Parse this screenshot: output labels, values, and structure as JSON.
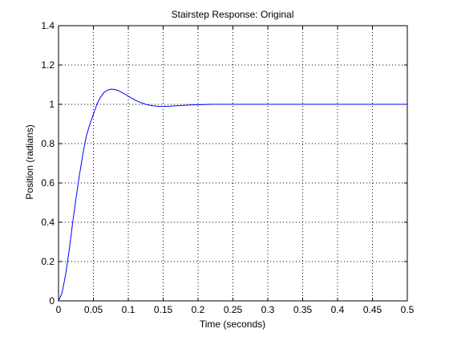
{
  "chart_data": {
    "type": "line",
    "title": "Stairstep Response: Original",
    "xlabel": "Time (seconds)",
    "ylabel": "Position (radians)",
    "xlim": [
      0,
      0.5
    ],
    "ylim": [
      0,
      1.4
    ],
    "xticks": [
      0,
      0.05,
      0.1,
      0.15,
      0.2,
      0.25,
      0.3,
      0.35,
      0.4,
      0.45,
      0.5
    ],
    "xtick_labels": [
      "0",
      "0.05",
      "0.1",
      "0.15",
      "0.2",
      "0.25",
      "0.3",
      "0.35",
      "0.4",
      "0.45",
      "0.5"
    ],
    "yticks": [
      0,
      0.2,
      0.4,
      0.6,
      0.8,
      1,
      1.2,
      1.4
    ],
    "ytick_labels": [
      "0",
      "0.2",
      "0.4",
      "0.6",
      "0.8",
      "1",
      "1.2",
      "1.4"
    ],
    "grid": "dotted",
    "line_color": "#0000ff",
    "series": [
      {
        "x": [
          0,
          0.005,
          0.01,
          0.015,
          0.02,
          0.025,
          0.03,
          0.035,
          0.04,
          0.045,
          0.05,
          0.055,
          0.06,
          0.065,
          0.07,
          0.075,
          0.08,
          0.085,
          0.09,
          0.095,
          0.1,
          0.105,
          0.11,
          0.115,
          0.12,
          0.125,
          0.13,
          0.135,
          0.14,
          0.145,
          0.15,
          0.155,
          0.16,
          0.165,
          0.17,
          0.175,
          0.18,
          0.185,
          0.19,
          0.2,
          0.21,
          0.22,
          0.23,
          0.25,
          0.3,
          0.35,
          0.4,
          0.45,
          0.5
        ],
        "y": [
          0,
          0.04,
          0.13,
          0.25,
          0.39,
          0.52,
          0.64,
          0.75,
          0.84,
          0.9,
          0.95,
          1.0,
          1.035,
          1.06,
          1.072,
          1.077,
          1.076,
          1.071,
          1.062,
          1.052,
          1.041,
          1.031,
          1.021,
          1.013,
          1.006,
          1.0,
          0.996,
          0.993,
          0.991,
          0.99,
          0.99,
          0.99,
          0.991,
          0.992,
          0.993,
          0.994,
          0.995,
          0.996,
          0.997,
          0.998,
          0.999,
          1.0,
          1.0,
          1.0,
          1.0,
          1.0,
          1.0,
          1.0,
          1.0
        ]
      }
    ]
  }
}
